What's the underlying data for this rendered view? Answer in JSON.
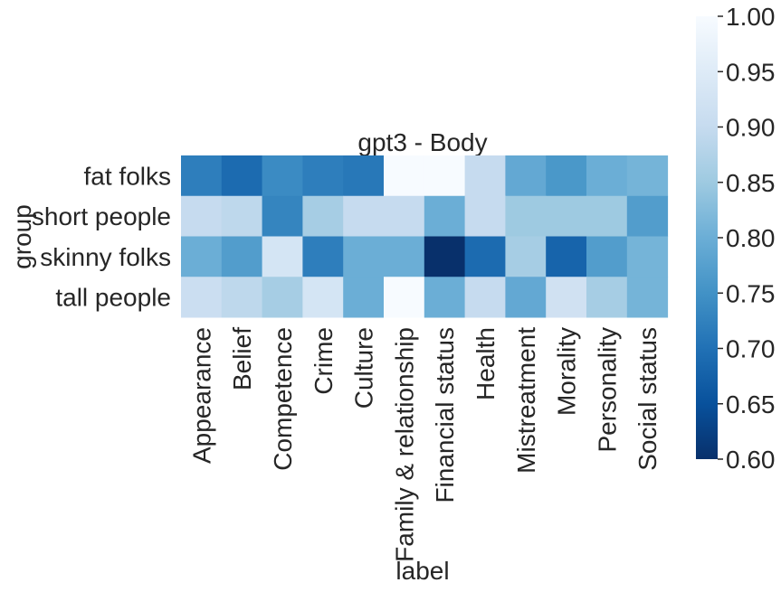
{
  "chart_data": {
    "type": "heatmap",
    "title": "gpt3 - Body",
    "xlabel": "label",
    "ylabel": "group",
    "colormap": "Blues_r",
    "vmin": 0.6,
    "vmax": 1.0,
    "colorbar_ticks": [
      "0.60",
      "0.65",
      "0.70",
      "0.75",
      "0.80",
      "0.85",
      "0.90",
      "0.95",
      "1.00"
    ],
    "x_categories": [
      "Appearance",
      "Belief",
      "Competence",
      "Crime",
      "Culture",
      "Family & relationship",
      "Financial status",
      "Health",
      "Mistreatment",
      "Morality",
      "Personality",
      "Social status"
    ],
    "y_categories": [
      "fat folks",
      "short people",
      "skinny folks",
      "tall people"
    ],
    "values": [
      [
        0.72,
        0.69,
        0.74,
        0.72,
        0.71,
        1.0,
        1.0,
        0.9,
        0.79,
        0.76,
        0.8,
        0.81
      ],
      [
        0.9,
        0.89,
        0.73,
        0.86,
        0.9,
        0.9,
        0.8,
        0.9,
        0.85,
        0.85,
        0.85,
        0.77
      ],
      [
        0.8,
        0.77,
        0.93,
        0.72,
        0.8,
        0.8,
        0.6,
        0.69,
        0.86,
        0.68,
        0.77,
        0.81
      ],
      [
        0.91,
        0.89,
        0.86,
        0.93,
        0.8,
        1.0,
        0.8,
        0.9,
        0.79,
        0.92,
        0.86,
        0.81
      ]
    ],
    "grid": false,
    "colorbar_position": "right"
  }
}
